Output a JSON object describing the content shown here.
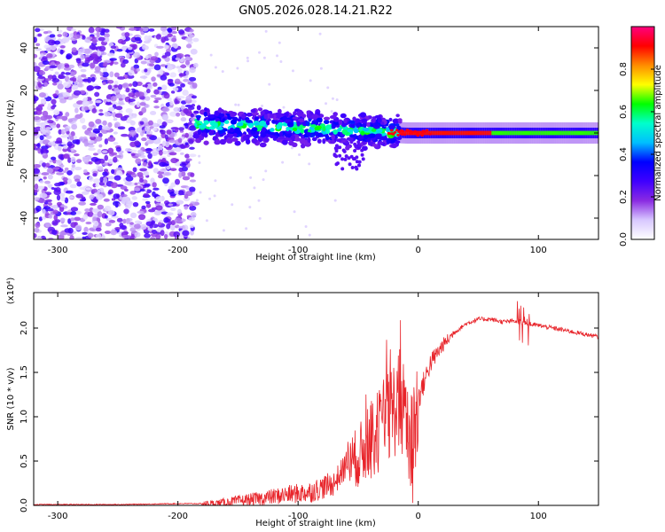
{
  "figure": {
    "title": "GN05.2026.028.14.21.R22"
  },
  "chart_data": [
    {
      "type": "heatmap",
      "name": "spectrogram",
      "title": "GN05.2026.028.14.21.R22",
      "xlabel": "Height of straight line (km)",
      "ylabel": "Frequency (Hz)",
      "xlim": [
        -320,
        150
      ],
      "ylim": [
        -50,
        50
      ],
      "xticks": [
        -300,
        -200,
        -100,
        0,
        100
      ],
      "yticks": [
        -40,
        -20,
        0,
        20,
        40
      ],
      "colorbar": {
        "label": "Normalized spectral amplitude",
        "range": [
          0.0,
          1.0
        ],
        "ticks": [
          0.0,
          0.2,
          0.4,
          0.6,
          0.8
        ],
        "colormap": [
          "#ffffff",
          "#d8c8ff",
          "#8a2be2",
          "#3f00ff",
          "#0000ff",
          "#00bfff",
          "#00ffcc",
          "#00ff00",
          "#ffff00",
          "#ff8c00",
          "#ff0000",
          "#ff007f"
        ]
      },
      "regions": [
        {
          "label": "noise",
          "x_range": [
            -320,
            -185
          ],
          "freq_range": [
            -50,
            50
          ],
          "amplitude": 0.1
        },
        {
          "label": "signal track",
          "x_range": [
            -185,
            150
          ],
          "center_freq": [
            4,
            2,
            0,
            0
          ],
          "center_x": [
            -180,
            -80,
            -10,
            150
          ],
          "amplitude": [
            0.45,
            0.5,
            0.9,
            0.7
          ]
        }
      ]
    },
    {
      "type": "line",
      "name": "snr",
      "xlabel": "Height of straight line (km)",
      "ylabel": "SNR (10 * v/v)",
      "yscale_label": "(x10⁴)",
      "xlim": [
        -320,
        150
      ],
      "ylim": [
        0.0,
        2.4
      ],
      "xticks": [
        -300,
        -200,
        -100,
        0,
        100
      ],
      "yticks": [
        0.0,
        0.5,
        1.0,
        1.5,
        2.0
      ],
      "yticks_labels": [
        "0.0",
        "0.5",
        "1.0",
        "1.5",
        "2.0"
      ],
      "series": [
        {
          "name": "SNR",
          "color": "#e8252b",
          "x": [
            -320,
            -250,
            -200,
            -170,
            -150,
            -130,
            -110,
            -90,
            -70,
            -60,
            -50,
            -40,
            -30,
            -20,
            -15,
            -10,
            -5,
            0,
            10,
            20,
            30,
            40,
            50,
            60,
            70,
            80,
            90,
            100,
            120,
            150
          ],
          "y": [
            0.01,
            0.01,
            0.02,
            0.02,
            0.05,
            0.08,
            0.12,
            0.15,
            0.25,
            0.45,
            0.55,
            0.7,
            0.9,
            1.1,
            1.2,
            0.9,
            0.6,
            1.2,
            1.6,
            1.8,
            1.95,
            2.05,
            2.1,
            2.1,
            2.07,
            2.08,
            2.05,
            2.03,
            1.98,
            1.9
          ]
        }
      ]
    }
  ]
}
